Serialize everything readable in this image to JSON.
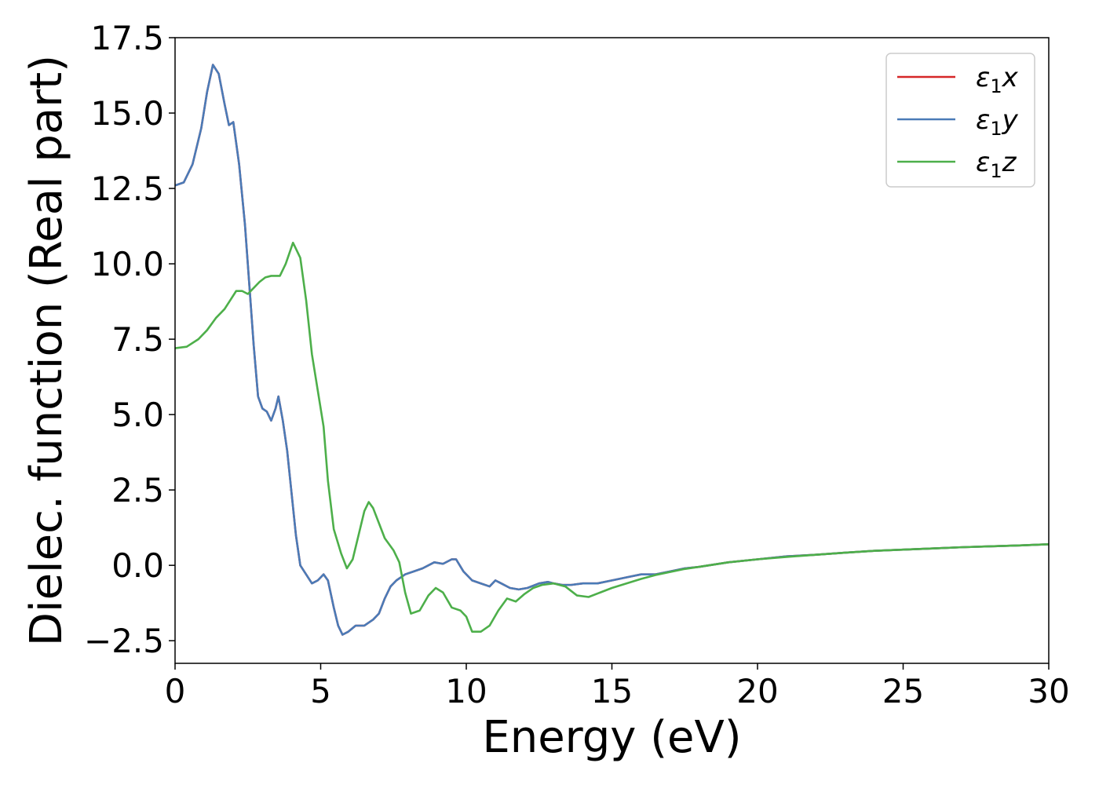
{
  "chart_data": {
    "type": "line",
    "xlabel": "Energy (eV)",
    "ylabel": "Dielec. function (Real part)",
    "xlim": [
      0,
      30
    ],
    "ylim": [
      -3.25,
      17.5
    ],
    "xticks": [
      0,
      5,
      10,
      15,
      20,
      25,
      30
    ],
    "yticks": [
      -2.5,
      0.0,
      2.5,
      5.0,
      7.5,
      10.0,
      12.5,
      15.0,
      17.5
    ],
    "ytick_labels": [
      "−2.5",
      "0.0",
      "2.5",
      "5.0",
      "7.5",
      "10.0",
      "12.5",
      "15.0",
      "17.5"
    ],
    "grid": false,
    "legend_position": "top-right",
    "series": [
      {
        "name": "x",
        "legend_prefix": "ε",
        "legend_sub": "1",
        "color": "#d62728",
        "points": [
          [
            0,
            12.6
          ],
          [
            0.3,
            12.7
          ],
          [
            0.6,
            13.3
          ],
          [
            0.9,
            14.5
          ],
          [
            1.1,
            15.7
          ],
          [
            1.3,
            16.6
          ],
          [
            1.5,
            16.3
          ],
          [
            1.7,
            15.3
          ],
          [
            1.85,
            14.6
          ],
          [
            2.0,
            14.7
          ],
          [
            2.2,
            13.3
          ],
          [
            2.4,
            11.3
          ],
          [
            2.55,
            9.3
          ],
          [
            2.7,
            7.3
          ],
          [
            2.85,
            5.6
          ],
          [
            3.0,
            5.2
          ],
          [
            3.15,
            5.1
          ],
          [
            3.3,
            4.8
          ],
          [
            3.45,
            5.2
          ],
          [
            3.55,
            5.6
          ],
          [
            3.7,
            4.8
          ],
          [
            3.85,
            3.8
          ],
          [
            4.0,
            2.4
          ],
          [
            4.15,
            1.0
          ],
          [
            4.3,
            0.0
          ],
          [
            4.5,
            -0.3
          ],
          [
            4.7,
            -0.6
          ],
          [
            4.9,
            -0.5
          ],
          [
            5.1,
            -0.3
          ],
          [
            5.25,
            -0.5
          ],
          [
            5.45,
            -1.4
          ],
          [
            5.6,
            -2.0
          ],
          [
            5.75,
            -2.3
          ],
          [
            5.95,
            -2.2
          ],
          [
            6.2,
            -2.0
          ],
          [
            6.5,
            -2.0
          ],
          [
            6.8,
            -1.8
          ],
          [
            7.0,
            -1.6
          ],
          [
            7.2,
            -1.1
          ],
          [
            7.4,
            -0.7
          ],
          [
            7.6,
            -0.5
          ],
          [
            7.9,
            -0.3
          ],
          [
            8.2,
            -0.2
          ],
          [
            8.5,
            -0.1
          ],
          [
            8.9,
            0.1
          ],
          [
            9.2,
            0.05
          ],
          [
            9.5,
            0.2
          ],
          [
            9.65,
            0.2
          ],
          [
            9.9,
            -0.2
          ],
          [
            10.2,
            -0.5
          ],
          [
            10.5,
            -0.6
          ],
          [
            10.8,
            -0.7
          ],
          [
            11.0,
            -0.5
          ],
          [
            11.2,
            -0.6
          ],
          [
            11.5,
            -0.75
          ],
          [
            11.8,
            -0.8
          ],
          [
            12.1,
            -0.75
          ],
          [
            12.5,
            -0.6
          ],
          [
            12.8,
            -0.55
          ],
          [
            13.0,
            -0.6
          ],
          [
            13.3,
            -0.65
          ],
          [
            13.6,
            -0.65
          ],
          [
            14.0,
            -0.6
          ],
          [
            14.5,
            -0.6
          ],
          [
            15.0,
            -0.5
          ],
          [
            15.5,
            -0.4
          ],
          [
            16.0,
            -0.3
          ],
          [
            16.5,
            -0.3
          ],
          [
            17.0,
            -0.2
          ],
          [
            17.5,
            -0.1
          ],
          [
            18.0,
            -0.05
          ],
          [
            19.0,
            0.1
          ],
          [
            20.0,
            0.2
          ],
          [
            21.0,
            0.3
          ],
          [
            22.0,
            0.35
          ],
          [
            23.0,
            0.42
          ],
          [
            24.0,
            0.48
          ],
          [
            25.0,
            0.52
          ],
          [
            26.0,
            0.56
          ],
          [
            27.0,
            0.6
          ],
          [
            28.0,
            0.63
          ],
          [
            29.0,
            0.66
          ],
          [
            30.0,
            0.7
          ]
        ]
      },
      {
        "name": "y",
        "legend_prefix": "ε",
        "legend_sub": "1",
        "color": "#4a7bb7",
        "points": [
          [
            0,
            12.6
          ],
          [
            0.3,
            12.7
          ],
          [
            0.6,
            13.3
          ],
          [
            0.9,
            14.5
          ],
          [
            1.1,
            15.7
          ],
          [
            1.3,
            16.6
          ],
          [
            1.5,
            16.3
          ],
          [
            1.7,
            15.3
          ],
          [
            1.85,
            14.6
          ],
          [
            2.0,
            14.7
          ],
          [
            2.2,
            13.3
          ],
          [
            2.4,
            11.3
          ],
          [
            2.55,
            9.3
          ],
          [
            2.7,
            7.3
          ],
          [
            2.85,
            5.6
          ],
          [
            3.0,
            5.2
          ],
          [
            3.15,
            5.1
          ],
          [
            3.3,
            4.8
          ],
          [
            3.45,
            5.2
          ],
          [
            3.55,
            5.6
          ],
          [
            3.7,
            4.8
          ],
          [
            3.85,
            3.8
          ],
          [
            4.0,
            2.4
          ],
          [
            4.15,
            1.0
          ],
          [
            4.3,
            0.0
          ],
          [
            4.5,
            -0.3
          ],
          [
            4.7,
            -0.6
          ],
          [
            4.9,
            -0.5
          ],
          [
            5.1,
            -0.3
          ],
          [
            5.25,
            -0.5
          ],
          [
            5.45,
            -1.4
          ],
          [
            5.6,
            -2.0
          ],
          [
            5.75,
            -2.3
          ],
          [
            5.95,
            -2.2
          ],
          [
            6.2,
            -2.0
          ],
          [
            6.5,
            -2.0
          ],
          [
            6.8,
            -1.8
          ],
          [
            7.0,
            -1.6
          ],
          [
            7.2,
            -1.1
          ],
          [
            7.4,
            -0.7
          ],
          [
            7.6,
            -0.5
          ],
          [
            7.9,
            -0.3
          ],
          [
            8.2,
            -0.2
          ],
          [
            8.5,
            -0.1
          ],
          [
            8.9,
            0.1
          ],
          [
            9.2,
            0.05
          ],
          [
            9.5,
            0.2
          ],
          [
            9.65,
            0.2
          ],
          [
            9.9,
            -0.2
          ],
          [
            10.2,
            -0.5
          ],
          [
            10.5,
            -0.6
          ],
          [
            10.8,
            -0.7
          ],
          [
            11.0,
            -0.5
          ],
          [
            11.2,
            -0.6
          ],
          [
            11.5,
            -0.75
          ],
          [
            11.8,
            -0.8
          ],
          [
            12.1,
            -0.75
          ],
          [
            12.5,
            -0.6
          ],
          [
            12.8,
            -0.55
          ],
          [
            13.0,
            -0.6
          ],
          [
            13.3,
            -0.65
          ],
          [
            13.6,
            -0.65
          ],
          [
            14.0,
            -0.6
          ],
          [
            14.5,
            -0.6
          ],
          [
            15.0,
            -0.5
          ],
          [
            15.5,
            -0.4
          ],
          [
            16.0,
            -0.3
          ],
          [
            16.5,
            -0.3
          ],
          [
            17.0,
            -0.2
          ],
          [
            17.5,
            -0.1
          ],
          [
            18.0,
            -0.05
          ],
          [
            19.0,
            0.1
          ],
          [
            20.0,
            0.2
          ],
          [
            21.0,
            0.3
          ],
          [
            22.0,
            0.35
          ],
          [
            23.0,
            0.42
          ],
          [
            24.0,
            0.48
          ],
          [
            25.0,
            0.52
          ],
          [
            26.0,
            0.56
          ],
          [
            27.0,
            0.6
          ],
          [
            28.0,
            0.63
          ],
          [
            29.0,
            0.66
          ],
          [
            30.0,
            0.7
          ]
        ]
      },
      {
        "name": "z",
        "legend_prefix": "ε",
        "legend_sub": "1",
        "color": "#4daf4a",
        "points": [
          [
            0,
            7.2
          ],
          [
            0.4,
            7.25
          ],
          [
            0.8,
            7.5
          ],
          [
            1.1,
            7.8
          ],
          [
            1.4,
            8.2
          ],
          [
            1.7,
            8.5
          ],
          [
            1.9,
            8.8
          ],
          [
            2.1,
            9.1
          ],
          [
            2.3,
            9.1
          ],
          [
            2.5,
            9.0
          ],
          [
            2.7,
            9.2
          ],
          [
            2.9,
            9.4
          ],
          [
            3.1,
            9.55
          ],
          [
            3.3,
            9.6
          ],
          [
            3.6,
            9.6
          ],
          [
            3.8,
            10.0
          ],
          [
            4.05,
            10.7
          ],
          [
            4.3,
            10.2
          ],
          [
            4.5,
            8.8
          ],
          [
            4.7,
            7.0
          ],
          [
            4.9,
            5.8
          ],
          [
            5.1,
            4.6
          ],
          [
            5.25,
            2.8
          ],
          [
            5.45,
            1.2
          ],
          [
            5.7,
            0.4
          ],
          [
            5.9,
            -0.1
          ],
          [
            6.1,
            0.2
          ],
          [
            6.3,
            1.0
          ],
          [
            6.5,
            1.8
          ],
          [
            6.65,
            2.1
          ],
          [
            6.8,
            1.9
          ],
          [
            7.0,
            1.4
          ],
          [
            7.2,
            0.9
          ],
          [
            7.5,
            0.5
          ],
          [
            7.7,
            0.1
          ],
          [
            7.9,
            -0.9
          ],
          [
            8.1,
            -1.6
          ],
          [
            8.4,
            -1.5
          ],
          [
            8.7,
            -1.0
          ],
          [
            8.95,
            -0.75
          ],
          [
            9.2,
            -0.9
          ],
          [
            9.5,
            -1.4
          ],
          [
            9.8,
            -1.5
          ],
          [
            10.0,
            -1.7
          ],
          [
            10.2,
            -2.2
          ],
          [
            10.5,
            -2.2
          ],
          [
            10.8,
            -2.0
          ],
          [
            11.1,
            -1.5
          ],
          [
            11.4,
            -1.1
          ],
          [
            11.7,
            -1.2
          ],
          [
            12.0,
            -0.95
          ],
          [
            12.3,
            -0.75
          ],
          [
            12.6,
            -0.65
          ],
          [
            13.0,
            -0.6
          ],
          [
            13.4,
            -0.7
          ],
          [
            13.8,
            -1.0
          ],
          [
            14.2,
            -1.05
          ],
          [
            14.6,
            -0.9
          ],
          [
            15.0,
            -0.75
          ],
          [
            15.5,
            -0.6
          ],
          [
            16.0,
            -0.45
          ],
          [
            16.5,
            -0.32
          ],
          [
            17.0,
            -0.22
          ],
          [
            17.5,
            -0.12
          ],
          [
            18.0,
            -0.05
          ],
          [
            19.0,
            0.1
          ],
          [
            20.0,
            0.2
          ],
          [
            21.0,
            0.28
          ],
          [
            22.0,
            0.35
          ],
          [
            23.0,
            0.42
          ],
          [
            24.0,
            0.48
          ],
          [
            25.0,
            0.52
          ],
          [
            26.0,
            0.56
          ],
          [
            27.0,
            0.6
          ],
          [
            28.0,
            0.63
          ],
          [
            29.0,
            0.66
          ],
          [
            30.0,
            0.7
          ]
        ]
      }
    ]
  }
}
